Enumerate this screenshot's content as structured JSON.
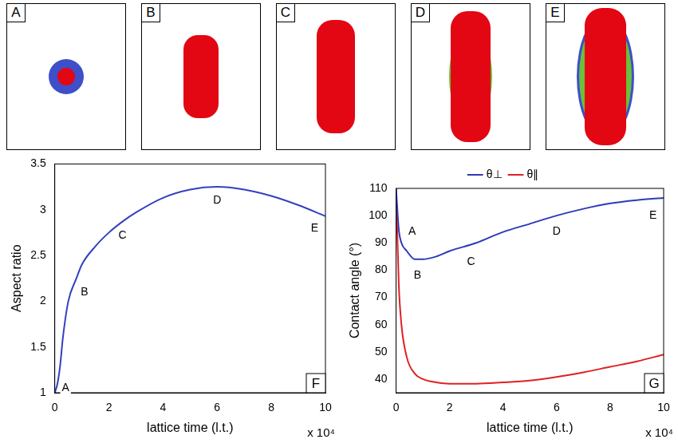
{
  "panels": [
    {
      "label": "A"
    },
    {
      "label": "B"
    },
    {
      "label": "C"
    },
    {
      "label": "D"
    },
    {
      "label": "E"
    }
  ],
  "chart_data": [
    {
      "panel": "F",
      "type": "line",
      "x_label": "lattice time (l.t.)",
      "x_multiplier": "x 10⁴",
      "y_label": "Aspect ratio",
      "x": [
        0,
        0.1,
        0.2,
        0.3,
        0.5,
        0.8,
        1,
        1.5,
        2,
        2.5,
        3,
        4,
        5,
        6,
        7,
        8,
        9,
        10
      ],
      "values": [
        1.0,
        1.1,
        1.3,
        1.6,
        2.0,
        2.25,
        2.4,
        2.6,
        2.75,
        2.87,
        2.97,
        3.13,
        3.22,
        3.25,
        3.22,
        3.15,
        3.05,
        2.93
      ],
      "color": "#3340c0",
      "xlim": [
        0,
        10
      ],
      "xticks": [
        0,
        2,
        4,
        6,
        8,
        10
      ],
      "ylim": [
        1,
        3.5
      ],
      "yticks": [
        1,
        1.5,
        2,
        2.5,
        3,
        3.5
      ],
      "grid": false,
      "annotations": [
        {
          "text": "A",
          "x": 0.4,
          "y": 1.05
        },
        {
          "text": "B",
          "x": 1.1,
          "y": 2.1
        },
        {
          "text": "C",
          "x": 2.5,
          "y": 2.72
        },
        {
          "text": "D",
          "x": 6,
          "y": 3.1
        },
        {
          "text": "E",
          "x": 9.6,
          "y": 2.8
        }
      ]
    },
    {
      "panel": "G",
      "type": "line",
      "x_label": "lattice time (l.t.)",
      "x_multiplier": "x 10⁴",
      "y_label": "Contact angle (°)",
      "x": [
        0,
        0.1,
        0.2,
        0.4,
        0.7,
        1,
        1.5,
        2,
        3,
        4,
        5,
        6,
        7,
        8,
        9,
        10
      ],
      "series": [
        {
          "name": "θ⊥",
          "color": "#2e3ab7",
          "values": [
            110,
            95,
            90,
            87,
            84,
            84,
            85,
            87,
            90,
            94,
            97,
            100,
            102.5,
            104.5,
            105.7,
            106.5
          ]
        },
        {
          "name": "θ∥",
          "color": "#e02020",
          "values": [
            110,
            75,
            60,
            48,
            42,
            40,
            38.8,
            38.3,
            38.3,
            38.8,
            39.5,
            40.8,
            42.5,
            44.5,
            46.5,
            49
          ]
        }
      ],
      "xlim": [
        0,
        10
      ],
      "xticks": [
        0,
        2,
        4,
        6,
        8,
        10
      ],
      "ylim": [
        35,
        110
      ],
      "yticks": [
        40,
        50,
        60,
        70,
        80,
        90,
        100,
        110
      ],
      "grid": false,
      "legend": "top",
      "annotations": [
        {
          "text": "A",
          "x": 0.6,
          "y": 94
        },
        {
          "text": "B",
          "x": 0.8,
          "y": 78
        },
        {
          "text": "C",
          "x": 2.8,
          "y": 83
        },
        {
          "text": "D",
          "x": 6,
          "y": 94
        },
        {
          "text": "E",
          "x": 9.6,
          "y": 100
        }
      ]
    }
  ]
}
